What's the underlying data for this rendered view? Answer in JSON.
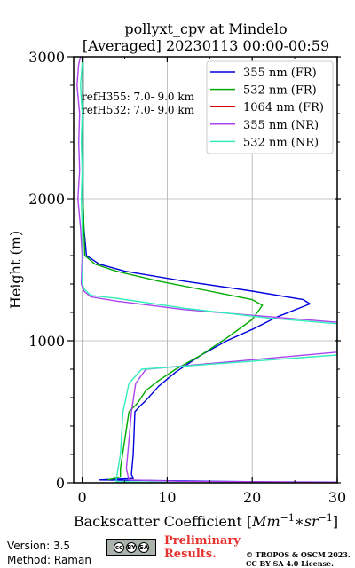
{
  "chart_data": {
    "type": "line",
    "title_line1": "pollyxt_cpv at Mindelo",
    "title_line2": "[Averaged] 20230113 00:00-00:59",
    "xlabel": "Backscatter Coefficient [$Mm^{-1}*sr^{-1}$]",
    "xlabel_prefix": "Backscatter Coefficient [",
    "xlabel_unit": "Mm",
    "xlabel_exp1": "−1",
    "xlabel_mid": "∗sr",
    "xlabel_exp2": "−1",
    "xlabel_suffix": "]",
    "ylabel": "Height (m)",
    "xlim": [
      -1,
      30
    ],
    "ylim": [
      0,
      3000
    ],
    "xticks": [
      0,
      10,
      20,
      30
    ],
    "xtick_labels": [
      "0",
      "10",
      "20",
      "30"
    ],
    "yticks": [
      0,
      1000,
      2000,
      3000
    ],
    "ytick_labels": [
      "0",
      "1000",
      "2000",
      "3000"
    ],
    "grid": true,
    "legend_position": "top-right",
    "annotations": [
      "refH355:  7.0- 9.0 km",
      "refH532:  7.0- 9.0 km"
    ],
    "series": [
      {
        "name": "355 nm (FR)",
        "color": "#0000dd",
        "points": [
          [
            30,
            0
          ],
          [
            2,
            20
          ],
          [
            6,
            30
          ],
          [
            5.8,
            60
          ],
          [
            6,
            200
          ],
          [
            6.2,
            500
          ],
          [
            6.8,
            540
          ],
          [
            7.5,
            580
          ],
          [
            9,
            680
          ],
          [
            11,
            780
          ],
          [
            14,
            900
          ],
          [
            17,
            1000
          ],
          [
            20,
            1080
          ],
          [
            23,
            1170
          ],
          [
            26.8,
            1260
          ],
          [
            26,
            1290
          ],
          [
            20,
            1350
          ],
          [
            12,
            1420
          ],
          [
            5,
            1490
          ],
          [
            2,
            1540
          ],
          [
            0.5,
            1600
          ],
          [
            0.2,
            1800
          ],
          [
            0.1,
            2000
          ],
          [
            0.1,
            2500
          ],
          [
            0.1,
            3000
          ]
        ]
      },
      {
        "name": "532 nm (FR)",
        "color": "#00aa00",
        "points": [
          [
            3,
            20
          ],
          [
            4.5,
            40
          ],
          [
            4.5,
            100
          ],
          [
            5,
            300
          ],
          [
            5.5,
            500
          ],
          [
            6.5,
            560
          ],
          [
            7.5,
            650
          ],
          [
            9,
            720
          ],
          [
            11,
            800
          ],
          [
            14,
            900
          ],
          [
            17,
            1020
          ],
          [
            20,
            1150
          ],
          [
            21.2,
            1250
          ],
          [
            20,
            1290
          ],
          [
            15,
            1350
          ],
          [
            9,
            1420
          ],
          [
            4,
            1490
          ],
          [
            1.5,
            1540
          ],
          [
            0.3,
            1600
          ],
          [
            0.2,
            1800
          ],
          [
            0.1,
            2000
          ],
          [
            0.1,
            2500
          ],
          [
            0.1,
            3000
          ]
        ]
      },
      {
        "name": "1064 nm (FR)",
        "color": "#dd0000",
        "points": []
      },
      {
        "name": "355 nm (NR)",
        "color": "#aa44ee",
        "points": [
          [
            30,
            5
          ],
          [
            12,
            10
          ],
          [
            5.5,
            20
          ],
          [
            5.2,
            100
          ],
          [
            5.5,
            300
          ],
          [
            5.8,
            500
          ],
          [
            6.3,
            700
          ],
          [
            7.5,
            800
          ],
          [
            30,
            920
          ],
          [
            30,
            1130
          ],
          [
            22,
            1170
          ],
          [
            12,
            1220
          ],
          [
            4,
            1280
          ],
          [
            1,
            1310
          ],
          [
            0.2,
            1350
          ],
          [
            -0.1,
            1400
          ],
          [
            0,
            1600
          ],
          [
            -0.2,
            1800
          ],
          [
            -0.5,
            2000
          ],
          [
            -0.3,
            2200
          ],
          [
            -0.4,
            2400
          ],
          [
            -0.3,
            2600
          ],
          [
            -0.6,
            2800
          ],
          [
            -0.4,
            2950
          ],
          [
            -0.2,
            3000
          ]
        ]
      },
      {
        "name": "532 nm (NR)",
        "color": "#33eebb",
        "points": [
          [
            12,
            0
          ],
          [
            4,
            8
          ],
          [
            4,
            20
          ],
          [
            4.5,
            200
          ],
          [
            4.8,
            500
          ],
          [
            5.5,
            700
          ],
          [
            7,
            800
          ],
          [
            30,
            900
          ],
          [
            30,
            1120
          ],
          [
            22,
            1160
          ],
          [
            12,
            1230
          ],
          [
            4,
            1300
          ],
          [
            1,
            1320
          ],
          [
            0.3,
            1360
          ],
          [
            0,
            1400
          ],
          [
            0.1,
            1600
          ],
          [
            0,
            1800
          ],
          [
            -0.1,
            2000
          ],
          [
            0,
            2200
          ],
          [
            -0.1,
            2400
          ],
          [
            0,
            2600
          ],
          [
            -0.2,
            2800
          ],
          [
            0,
            2950
          ],
          [
            0,
            3000
          ]
        ]
      }
    ]
  },
  "footer": {
    "version": "Version: 3.5",
    "method": "Method: Raman",
    "cc_label": "cc",
    "cc_icons": [
      "cc",
      "BY",
      "SA"
    ],
    "prelim_line1": "Preliminary",
    "prelim_line2": "Results.",
    "copyright_line1": "© TROPOS & OSCM 2023.",
    "copyright_line2": "CC BY SA 4.0 License."
  }
}
